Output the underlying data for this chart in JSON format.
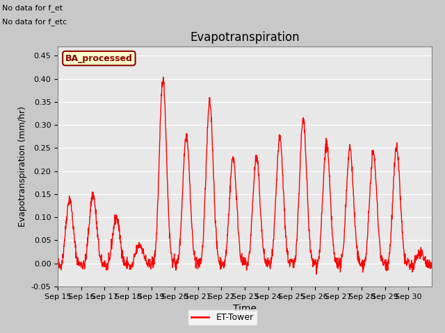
{
  "title": "Evapotranspiration",
  "xlabel": "Time",
  "ylabel": "Evapotranspiration (mm/hr)",
  "ylim": [
    -0.05,
    0.47
  ],
  "yticks": [
    -0.05,
    0.0,
    0.05,
    0.1,
    0.15,
    0.2,
    0.25,
    0.3,
    0.35,
    0.4,
    0.45
  ],
  "line_color": "red",
  "line_width": 1.0,
  "legend_label": "ET-Tower",
  "ba_label": "BA_processed",
  "no_data_text1": "No data for f_et",
  "no_data_text2": "No data for f_etc",
  "x_tick_labels": [
    "Sep 15",
    "Sep 16",
    "Sep 17",
    "Sep 18",
    "Sep 19",
    "Sep 20",
    "Sep 21",
    "Sep 22",
    "Sep 23",
    "Sep 24",
    "Sep 25",
    "Sep 26",
    "Sep 27",
    "Sep 28",
    "Sep 29",
    "Sep 30"
  ],
  "plot_bg_color": "#e8e8e8",
  "grid_color": "white",
  "day_peaks": [
    0.14,
    0.15,
    0.1,
    0.04,
    0.4,
    0.28,
    0.35,
    0.23,
    0.23,
    0.27,
    0.31,
    0.26,
    0.25,
    0.24,
    0.25,
    0.02
  ]
}
